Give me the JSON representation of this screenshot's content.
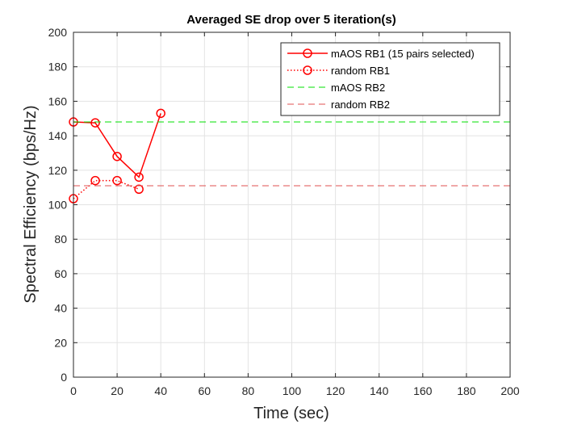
{
  "chart_data": {
    "type": "line",
    "title": "Averaged SE drop over 5 iteration(s)",
    "xlabel": "Time (sec)",
    "ylabel": "Spectral Efficiency (bps/Hz)",
    "xlim": [
      0,
      200
    ],
    "ylim": [
      0,
      200
    ],
    "xticks": [
      0,
      20,
      40,
      60,
      80,
      100,
      120,
      140,
      160,
      180,
      200
    ],
    "yticks": [
      0,
      20,
      40,
      60,
      80,
      100,
      120,
      140,
      160,
      180,
      200
    ],
    "grid": true,
    "legend_position": "top-right",
    "series": [
      {
        "name": "mAOS RB1 (15 pairs selected)",
        "style": "solid-circle",
        "color": "#ff0000",
        "x": [
          0,
          10,
          20,
          30,
          40
        ],
        "y": [
          148,
          147.5,
          128,
          116,
          153
        ]
      },
      {
        "name": "random RB1",
        "style": "dotted-circle",
        "color": "#ff0000",
        "x": [
          0,
          10,
          20,
          30
        ],
        "y": [
          103.5,
          114,
          114,
          109
        ]
      },
      {
        "name": "mAOS RB2",
        "style": "dashed",
        "color": "#00e000",
        "x": [
          0,
          200
        ],
        "y": [
          148,
          148
        ]
      },
      {
        "name": "random RB2",
        "style": "dashed",
        "color": "#e05050",
        "x": [
          0,
          200
        ],
        "y": [
          111,
          111
        ]
      }
    ]
  }
}
